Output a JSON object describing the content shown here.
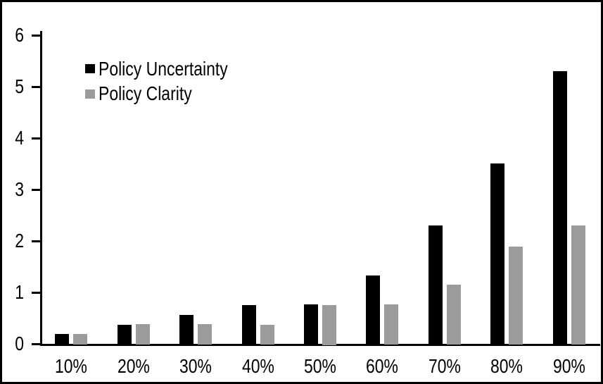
{
  "chart_data": {
    "type": "bar",
    "title": "",
    "xlabel": "",
    "ylabel": "",
    "categories": [
      "10%",
      "20%",
      "30%",
      "40%",
      "50%",
      "60%",
      "70%",
      "80%",
      "90%"
    ],
    "series": [
      {
        "name": "Policy Uncertainty",
        "color": "#000000",
        "values": [
          0.18,
          0.36,
          0.55,
          0.74,
          0.76,
          1.32,
          2.3,
          3.5,
          5.3
        ]
      },
      {
        "name": "Policy Clarity",
        "color": "#9b9b9b",
        "values": [
          0.19,
          0.37,
          0.37,
          0.36,
          0.75,
          0.76,
          1.14,
          1.88,
          2.3
        ]
      }
    ],
    "ylim": [
      0,
      6
    ],
    "yticks": [
      0,
      1,
      2,
      3,
      4,
      5,
      6
    ],
    "grid": false,
    "legend_position": "top-left-inside",
    "colors": {
      "background": "#ffffff",
      "frame_border": "#000000",
      "axis": "#000000",
      "text": "#000000"
    }
  }
}
